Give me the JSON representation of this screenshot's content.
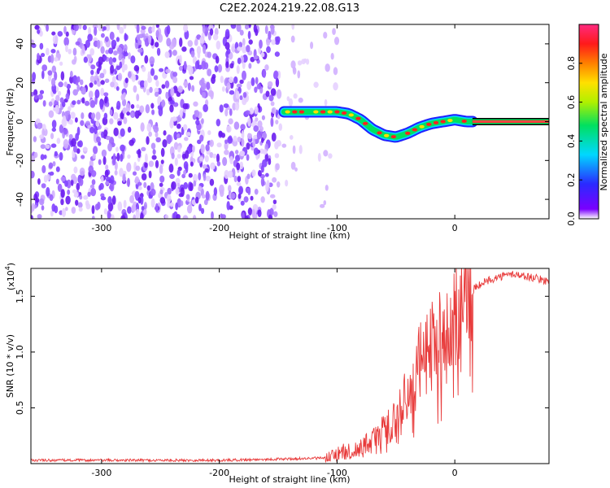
{
  "title": "C2E2.2024.219.22.08.G13",
  "chart_data": [
    {
      "type": "heatmap",
      "xlabel": "Height of straight line (km)",
      "ylabel": "Frequency (Hz)",
      "xlim": [
        -360,
        80
      ],
      "ylim": [
        -50,
        50
      ],
      "xticks": [
        -300,
        -200,
        -100,
        0
      ],
      "yticks": [
        -40,
        -20,
        0,
        20,
        40
      ],
      "colorbar": {
        "label": "Normalized spectral amplitude",
        "range": [
          0,
          1
        ],
        "ticks": [
          "0.0",
          "0.2",
          "0.4",
          "0.6",
          "0.8"
        ],
        "tick_values": [
          0,
          0.2,
          0.4,
          0.6,
          0.8
        ]
      },
      "ridge": {
        "x": [
          -145,
          -130,
          -115,
          -100,
          -90,
          -80,
          -70,
          -60,
          -50,
          -40,
          -30,
          -20,
          -10,
          0,
          10,
          80
        ],
        "y": [
          5,
          5,
          5,
          5,
          4,
          1,
          -4,
          -7,
          -8,
          -6,
          -3,
          -1,
          0,
          1,
          0,
          0
        ]
      },
      "noise_region_x": [
        -360,
        -100
      ],
      "clean_region_start_x": 15
    },
    {
      "type": "line",
      "xlabel": "Height of straight line (km)",
      "ylabel": "SNR (10 * v/v)",
      "y_multiplier_label": "(x10",
      "y_multiplier_exp": "4",
      "xlim": [
        -360,
        80
      ],
      "ylim": [
        0,
        1.75
      ],
      "xticks": [
        -300,
        -200,
        -100,
        0
      ],
      "yticks": [
        0.5,
        1.0,
        1.5
      ],
      "ytick_labels": [
        "0.5",
        "1.0",
        "1.5"
      ],
      "series": [
        {
          "color": "#e83a3a",
          "x": [
            -360,
            -300,
            -200,
            -150,
            -110,
            -90,
            -80,
            -70,
            -60,
            -50,
            -45,
            -40,
            -35,
            -30,
            -25,
            -20,
            -15,
            -10,
            -5,
            0,
            5,
            10,
            20,
            30,
            40,
            50,
            60,
            70,
            80
          ],
          "y": [
            0.03,
            0.03,
            0.03,
            0.04,
            0.05,
            0.12,
            0.15,
            0.2,
            0.3,
            0.4,
            0.55,
            0.6,
            0.75,
            0.9,
            1.0,
            1.05,
            1.15,
            1.2,
            1.3,
            1.4,
            1.45,
            1.5,
            1.6,
            1.65,
            1.68,
            1.7,
            1.68,
            1.66,
            1.63
          ]
        }
      ]
    }
  ]
}
